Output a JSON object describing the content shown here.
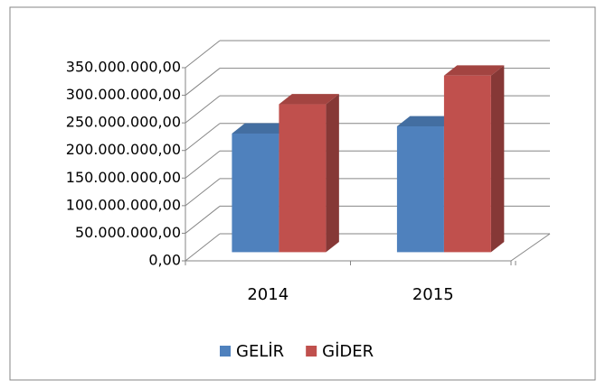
{
  "chart_data": {
    "type": "bar3d",
    "categories": [
      "2014",
      "2015"
    ],
    "series": [
      {
        "name": "GELİR",
        "color": "#4f81bd",
        "values": [
          215000000,
          228000000
        ]
      },
      {
        "name": "GİDER",
        "color": "#c0504d",
        "values": [
          268000000,
          320000000
        ]
      }
    ],
    "ylim": [
      0,
      350000000
    ],
    "yticks": [
      {
        "value": 0,
        "label": "0,00"
      },
      {
        "value": 50000000,
        "label": "50.000.000,00"
      },
      {
        "value": 100000000,
        "label": "100.000.000,00"
      },
      {
        "value": 150000000,
        "label": "150.000.000,00"
      },
      {
        "value": 200000000,
        "label": "200.000.000,00"
      },
      {
        "value": 250000000,
        "label": "250.000.000,00"
      },
      {
        "value": 300000000,
        "label": "300.000.000,00"
      },
      {
        "value": 350000000,
        "label": "350.000.000,00"
      }
    ],
    "grid": true,
    "legend": "bottom"
  }
}
